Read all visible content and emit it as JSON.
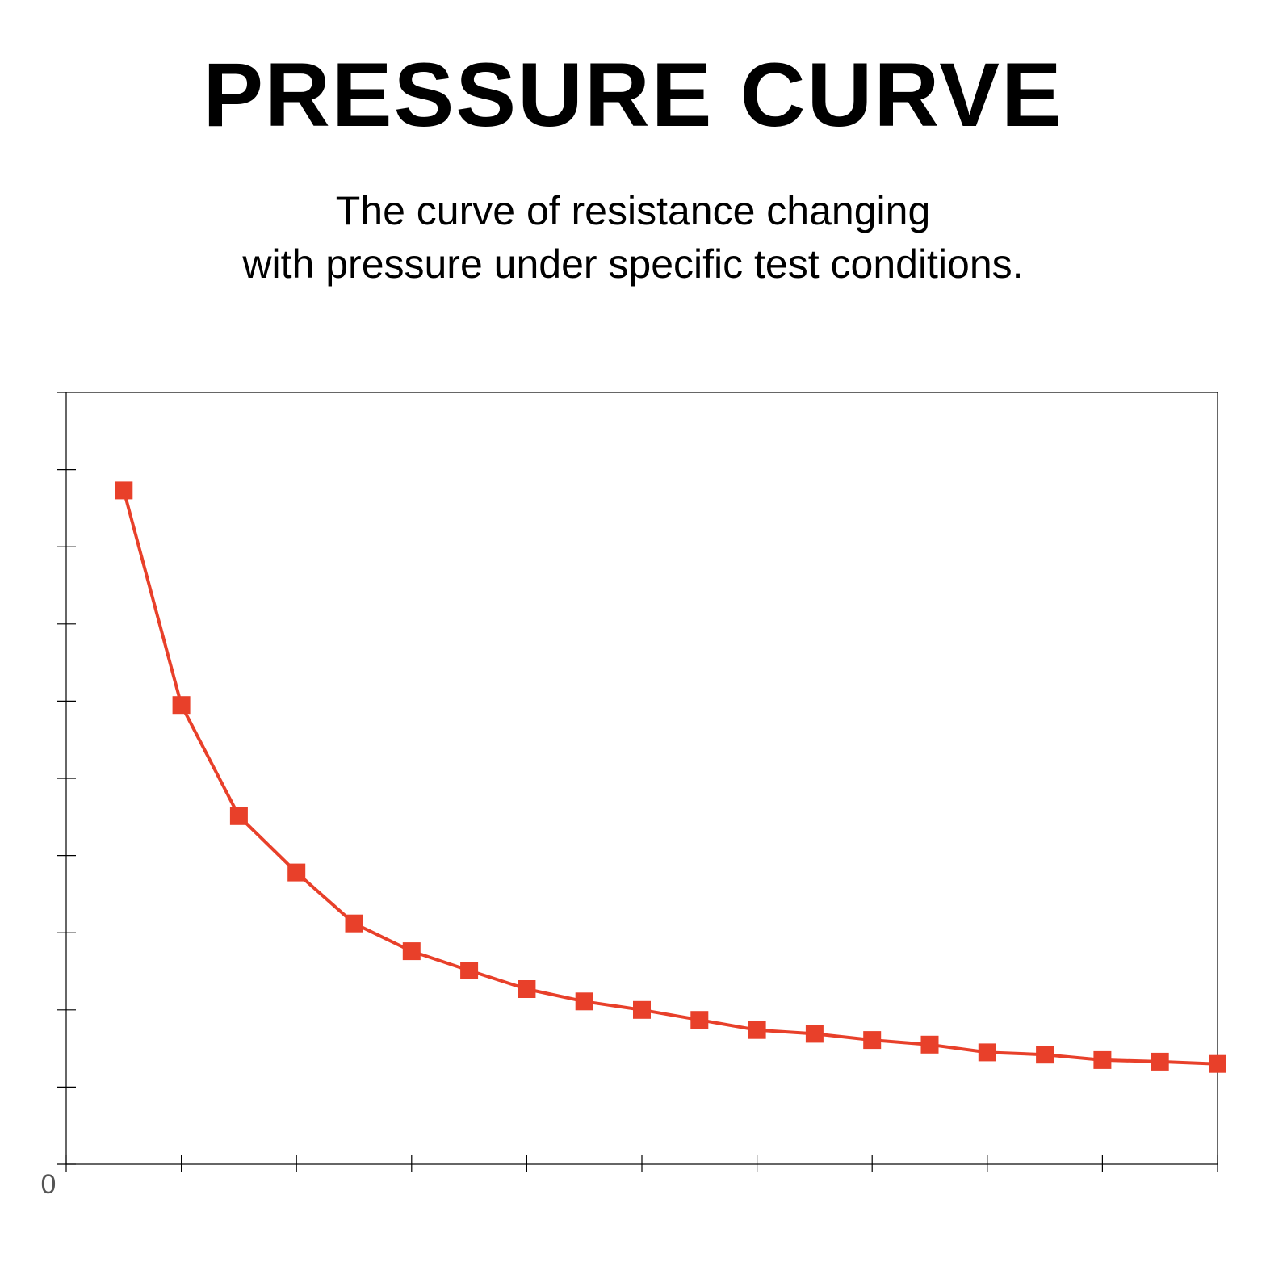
{
  "title": "PRESSURE CURVE",
  "subtitle": {
    "line1": "The curve of resistance changing",
    "line2": "with pressure under specific test conditions."
  },
  "chart_data": {
    "type": "line",
    "title": "PRESSURE CURVE",
    "xlabel": "",
    "ylabel": "",
    "origin_label": "0",
    "xlim": [
      0,
      20
    ],
    "ylim": [
      0,
      10
    ],
    "x_tick_count": 10,
    "y_tick_count": 10,
    "grid": false,
    "line_color": "#e8402a",
    "marker": "square",
    "series": [
      {
        "x": [
          1,
          2,
          3,
          4,
          5,
          6,
          7,
          8,
          9,
          10,
          11,
          12,
          13,
          14,
          15,
          16,
          17,
          18,
          19,
          20
        ],
        "values": [
          8.73,
          5.95,
          4.51,
          3.78,
          3.12,
          2.76,
          2.51,
          2.27,
          2.11,
          2.0,
          1.87,
          1.74,
          1.69,
          1.61,
          1.55,
          1.45,
          1.42,
          1.35,
          1.33,
          1.3
        ]
      }
    ]
  }
}
